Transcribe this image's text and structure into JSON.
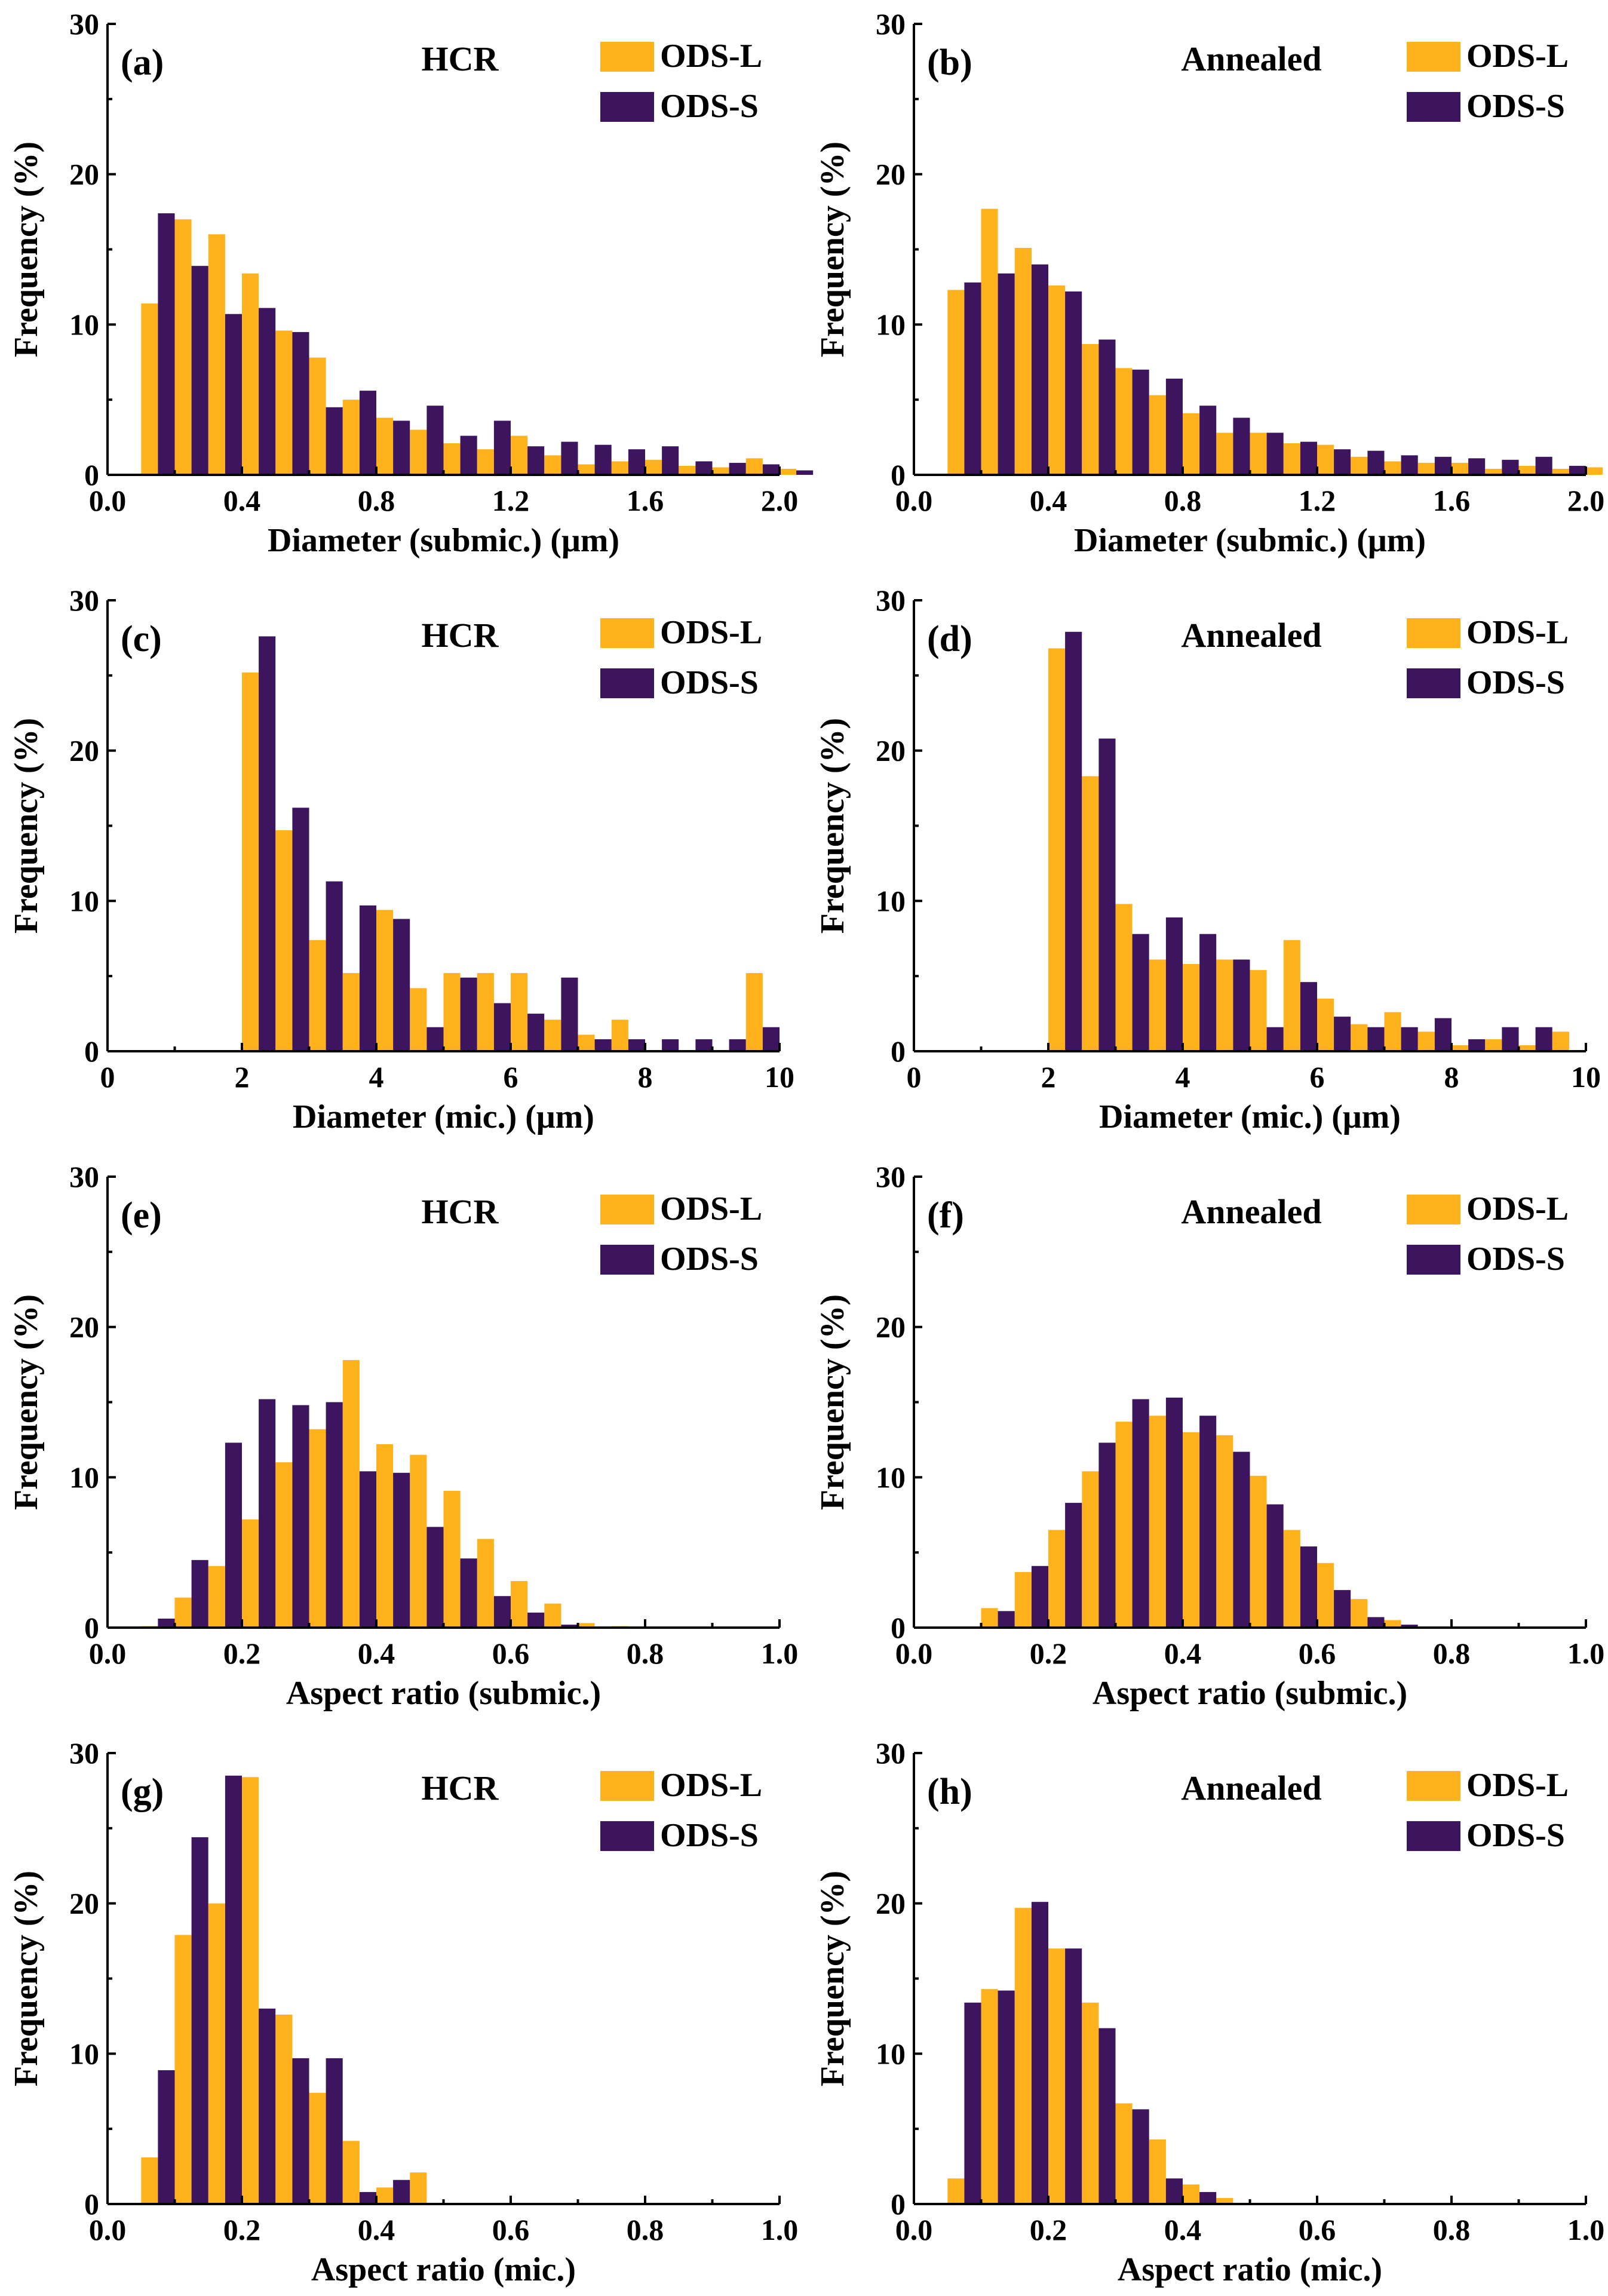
{
  "colors": {
    "ods_l": "#FFB21C",
    "ods_s": "#3D155F"
  },
  "legend_labels": [
    "ODS-L",
    "ODS-S"
  ],
  "chart_data": [
    {
      "panel": "(a)",
      "condition": "HCR",
      "type": "bar",
      "xlabel": "Diameter (submic.) (μm)",
      "ylabel": "Frequency (%)",
      "xlim": [
        0,
        2.0
      ],
      "ylim": [
        0,
        30
      ],
      "xticks": [
        "0.0",
        "0.4",
        "0.8",
        "1.2",
        "1.6",
        "2.0"
      ],
      "xtick_values": [
        0,
        0.4,
        0.8,
        1.2,
        1.6,
        2.0
      ],
      "yticks": [
        "0",
        "10",
        "20",
        "30"
      ],
      "ytick_values": [
        0,
        10,
        20,
        30
      ],
      "bin_start": 0.1,
      "bin_width": 0.1,
      "series": [
        {
          "name": "ODS-L",
          "values": [
            11.4,
            17.0,
            16.0,
            13.4,
            9.6,
            7.8,
            5.0,
            3.8,
            3.0,
            2.1,
            1.7,
            2.6,
            1.3,
            0.7,
            0.9,
            1.0,
            0.6,
            0.5,
            1.1,
            0.4
          ]
        },
        {
          "name": "ODS-S",
          "values": [
            17.4,
            13.9,
            10.7,
            11.1,
            9.5,
            4.5,
            5.6,
            3.6,
            4.6,
            2.6,
            3.6,
            1.9,
            2.2,
            2.0,
            1.7,
            1.9,
            0.9,
            0.8,
            0.7,
            0.3
          ]
        }
      ]
    },
    {
      "panel": "(b)",
      "condition": "Annealed",
      "type": "bar",
      "xlabel": "Diameter (submic.) (μm)",
      "ylabel": "Frequency (%)",
      "xlim": [
        0,
        2.0
      ],
      "ylim": [
        0,
        30
      ],
      "xticks": [
        "0.0",
        "0.4",
        "0.8",
        "1.2",
        "1.6",
        "2.0"
      ],
      "xtick_values": [
        0,
        0.4,
        0.8,
        1.2,
        1.6,
        2.0
      ],
      "yticks": [
        "0",
        "10",
        "20",
        "30"
      ],
      "ytick_values": [
        0,
        10,
        20,
        30
      ],
      "bin_start": 0.1,
      "bin_width": 0.1,
      "series": [
        {
          "name": "ODS-L",
          "values": [
            12.3,
            17.7,
            15.1,
            12.6,
            8.7,
            7.1,
            5.3,
            4.1,
            2.8,
            2.8,
            2.1,
            2.0,
            1.2,
            0.9,
            0.8,
            0.8,
            0.4,
            0.6,
            0.4,
            0.5
          ]
        },
        {
          "name": "ODS-S",
          "values": [
            12.8,
            13.4,
            14.0,
            12.2,
            9.0,
            7.0,
            6.4,
            4.6,
            3.8,
            2.8,
            2.2,
            1.7,
            1.6,
            1.3,
            1.2,
            1.1,
            1.0,
            1.2,
            0.6,
            0.0
          ]
        }
      ]
    },
    {
      "panel": "(c)",
      "condition": "HCR",
      "type": "bar",
      "xlabel": "Diameter (mic.) (μm)",
      "ylabel": "Frequency (%)",
      "xlim": [
        0,
        10
      ],
      "ylim": [
        0,
        30
      ],
      "xticks": [
        "0",
        "2",
        "4",
        "6",
        "8",
        "10"
      ],
      "xtick_values": [
        0,
        2,
        4,
        6,
        8,
        10
      ],
      "yticks": [
        "0",
        "10",
        "20",
        "30"
      ],
      "ytick_values": [
        0,
        10,
        20,
        30
      ],
      "bin_start": 2.0,
      "bin_width": 0.5,
      "series": [
        {
          "name": "ODS-L",
          "values": [
            25.2,
            14.7,
            7.4,
            5.2,
            9.4,
            4.2,
            5.2,
            5.2,
            5.2,
            2.1,
            1.1,
            2.1,
            0.0,
            0.0,
            0.0,
            5.2
          ]
        },
        {
          "name": "ODS-S",
          "values": [
            27.6,
            16.2,
            11.3,
            9.7,
            8.8,
            1.6,
            4.9,
            3.2,
            2.5,
            4.9,
            0.8,
            0.8,
            0.8,
            0.8,
            0.8,
            1.6
          ]
        }
      ]
    },
    {
      "panel": "(d)",
      "condition": "Annealed",
      "type": "bar",
      "xlabel": "Diameter (mic.) (μm)",
      "ylabel": "Frequency (%)",
      "xlim": [
        0,
        10
      ],
      "ylim": [
        0,
        30
      ],
      "xticks": [
        "0",
        "2",
        "4",
        "6",
        "8",
        "10"
      ],
      "xtick_values": [
        0,
        2,
        4,
        6,
        8,
        10
      ],
      "yticks": [
        "0",
        "10",
        "20",
        "30"
      ],
      "ytick_values": [
        0,
        10,
        20,
        30
      ],
      "bin_start": 2.0,
      "bin_width": 0.5,
      "series": [
        {
          "name": "ODS-L",
          "values": [
            26.8,
            18.3,
            9.8,
            6.1,
            5.8,
            6.1,
            5.4,
            7.4,
            3.5,
            1.8,
            2.6,
            1.3,
            0.4,
            0.8,
            0.4,
            1.3
          ]
        },
        {
          "name": "ODS-S",
          "values": [
            27.9,
            20.8,
            7.8,
            8.9,
            7.8,
            6.1,
            1.6,
            4.6,
            2.3,
            1.6,
            1.6,
            2.2,
            0.8,
            1.6,
            1.6,
            0.0
          ]
        }
      ]
    },
    {
      "panel": "(e)",
      "condition": "HCR",
      "type": "bar",
      "xlabel": "Aspect ratio (submic.)",
      "ylabel": "Frequency (%)",
      "xlim": [
        0,
        1.0
      ],
      "ylim": [
        0,
        30
      ],
      "xticks": [
        "0.0",
        "0.2",
        "0.4",
        "0.6",
        "0.8",
        "1.0"
      ],
      "xtick_values": [
        0,
        0.2,
        0.4,
        0.6,
        0.8,
        1.0
      ],
      "yticks": [
        "0",
        "10",
        "20",
        "30"
      ],
      "ytick_values": [
        0,
        10,
        20,
        30
      ],
      "bin_start": 0.05,
      "bin_width": 0.05,
      "series": [
        {
          "name": "ODS-L",
          "values": [
            0.1,
            2.0,
            4.1,
            7.2,
            11.0,
            13.2,
            17.8,
            12.2,
            11.5,
            9.1,
            5.9,
            3.1,
            1.6,
            0.3,
            0.1
          ]
        },
        {
          "name": "ODS-S",
          "values": [
            0.6,
            4.5,
            12.3,
            15.2,
            14.8,
            15.0,
            10.4,
            10.3,
            6.7,
            4.6,
            2.1,
            1.0,
            0.2,
            0.0,
            0.0
          ]
        }
      ]
    },
    {
      "panel": "(f)",
      "condition": "Annealed",
      "type": "bar",
      "xlabel": "Aspect ratio (submic.)",
      "ylabel": "Frequency (%)",
      "xlim": [
        0,
        1.0
      ],
      "ylim": [
        0,
        30
      ],
      "xticks": [
        "0.0",
        "0.2",
        "0.4",
        "0.6",
        "0.8",
        "1.0"
      ],
      "xtick_values": [
        0,
        0.2,
        0.4,
        0.6,
        0.8,
        1.0
      ],
      "yticks": [
        "0",
        "10",
        "20",
        "30"
      ],
      "ytick_values": [
        0,
        10,
        20,
        30
      ],
      "bin_start": 0.1,
      "bin_width": 0.05,
      "series": [
        {
          "name": "ODS-L",
          "values": [
            1.3,
            3.7,
            6.5,
            10.4,
            13.7,
            14.1,
            13.0,
            12.8,
            10.1,
            6.5,
            4.3,
            1.9,
            0.5
          ]
        },
        {
          "name": "ODS-S",
          "values": [
            1.1,
            4.1,
            8.3,
            12.3,
            15.2,
            15.3,
            14.1,
            11.7,
            8.2,
            5.4,
            2.5,
            0.7,
            0.2
          ]
        }
      ]
    },
    {
      "panel": "(g)",
      "condition": "HCR",
      "type": "bar",
      "xlabel": "Aspect ratio (mic.)",
      "ylabel": "Frequency (%)",
      "xlim": [
        0,
        1.0
      ],
      "ylim": [
        0,
        30
      ],
      "xticks": [
        "0.0",
        "0.2",
        "0.4",
        "0.6",
        "0.8",
        "1.0"
      ],
      "xtick_values": [
        0,
        0.2,
        0.4,
        0.6,
        0.8,
        1.0
      ],
      "yticks": [
        "0",
        "10",
        "20",
        "30"
      ],
      "ytick_values": [
        0,
        10,
        20,
        30
      ],
      "bin_start": 0.05,
      "bin_width": 0.05,
      "series": [
        {
          "name": "ODS-L",
          "values": [
            3.1,
            17.9,
            20.0,
            28.4,
            12.6,
            7.4,
            4.2,
            1.1,
            2.1
          ]
        },
        {
          "name": "ODS-S",
          "values": [
            8.9,
            24.4,
            28.5,
            13.0,
            9.7,
            9.7,
            0.8,
            1.6,
            0.0
          ]
        }
      ]
    },
    {
      "panel": "(h)",
      "condition": "Annealed",
      "type": "bar",
      "xlabel": "Aspect ratio (mic.)",
      "ylabel": "Frequency (%)",
      "xlim": [
        0,
        1.0
      ],
      "ylim": [
        0,
        30
      ],
      "xticks": [
        "0.0",
        "0.2",
        "0.4",
        "0.6",
        "0.8",
        "1.0"
      ],
      "xtick_values": [
        0,
        0.2,
        0.4,
        0.6,
        0.8,
        1.0
      ],
      "yticks": [
        "0",
        "10",
        "20",
        "30"
      ],
      "ytick_values": [
        0,
        10,
        20,
        30
      ],
      "bin_start": 0.05,
      "bin_width": 0.05,
      "series": [
        {
          "name": "ODS-L",
          "values": [
            1.7,
            14.3,
            19.7,
            17.0,
            13.4,
            6.7,
            4.3,
            1.3,
            0.4
          ]
        },
        {
          "name": "ODS-S",
          "values": [
            13.4,
            14.2,
            20.1,
            17.0,
            11.7,
            6.3,
            1.7,
            0.8,
            0.0
          ]
        }
      ]
    }
  ]
}
